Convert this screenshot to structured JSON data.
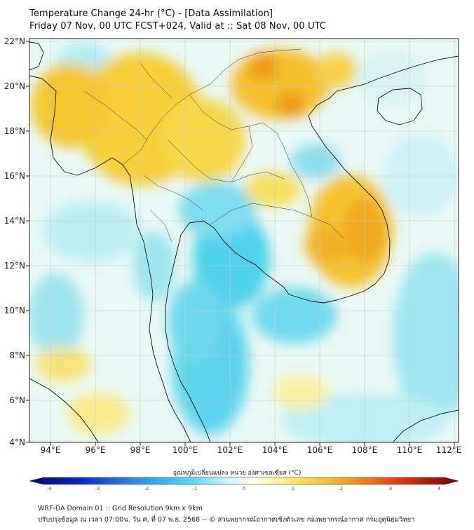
{
  "title_line1": "Temperature Change 24-hr (°C) - [Data Assimilation]",
  "title_line2": "Friday 07 Nov, 00 UTC FCST+024, Valid at :: Sat 08 Nov, 00 UTC",
  "map": {
    "lon_labels": [
      "94°E",
      "96°E",
      "98°E",
      "100°E",
      "102°E",
      "104°E",
      "106°E",
      "108°E",
      "110°E",
      "112°E"
    ],
    "lat_labels": [
      "22°N",
      "20°N",
      "18°N",
      "16°N",
      "14°N",
      "12°N",
      "10°N",
      "8°N",
      "6°N",
      "4°N"
    ],
    "field_colors": {
      "warm": "#f5c518",
      "hot": "#f08a1a",
      "neutral": "#fbfbe6",
      "cool": "#8fe3f0",
      "cold": "#4cd0ea",
      "sea": "#d8f3f6"
    }
  },
  "colorbar": {
    "label": "อุณหภูมิเปลี่ยนแปลง หน่วย องศาเซลเซียส (°C)",
    "ticks": [
      "-4",
      "-3",
      "-2",
      "-1",
      "0",
      "1",
      "2",
      "3",
      "4"
    ],
    "min": -4,
    "max": 4
  },
  "footer_line1": "WRF-DA Domain 01 :: Grid Resolution 9km x 9km",
  "footer_line2": "ปรับปรุงข้อมูล ณ เวลา 07:00น. วัน ศ. ที่ 07 พ.ย. 2568 -- © ส่วนพยากรณ์อากาศเชิงตัวเลข กองพยากรณ์อากาศ กรมอุตุนิยมวิทยา"
}
